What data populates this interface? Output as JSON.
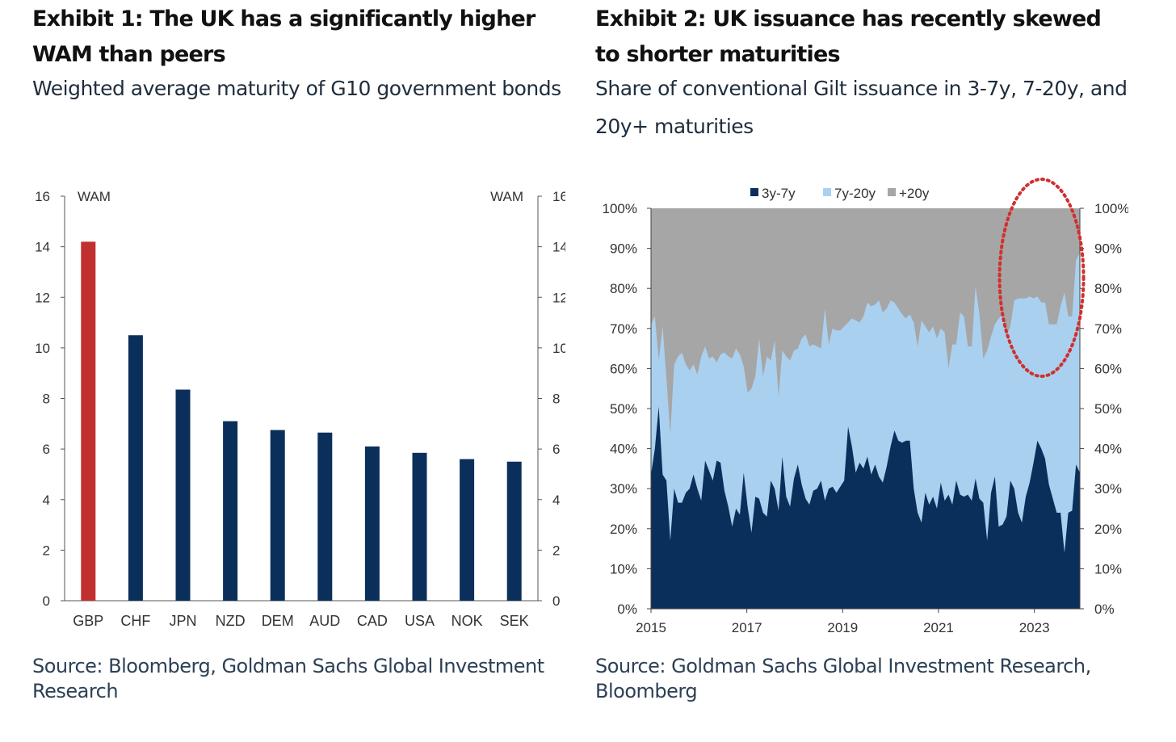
{
  "exhibits": [
    {
      "title": "Exhibit 1: The UK has a significantly higher WAM than peers",
      "subtitle": "Weighted average maturity of G10 government bonds",
      "source": "Source: Bloomberg, Goldman Sachs Global Investment Research"
    },
    {
      "title": "Exhibit 2: UK issuance has recently skewed to shorter maturities",
      "subtitle": "Share of conventional Gilt issuance in 3-7y, 7-20y, and 20y+ maturities",
      "source": "Source: Goldman Sachs Global Investment Research, Bloomberg"
    }
  ],
  "chart_data": [
    {
      "type": "bar",
      "title": "",
      "left_axis_label": "WAM",
      "right_axis_label": "WAM",
      "categories": [
        "GBP",
        "CHF",
        "JPN",
        "NZD",
        "DEM",
        "AUD",
        "CAD",
        "USA",
        "NOK",
        "SEK"
      ],
      "values": [
        14.2,
        10.5,
        8.35,
        7.1,
        6.75,
        6.65,
        6.1,
        5.85,
        5.6,
        5.5
      ],
      "highlight_category": "GBP",
      "ylim": [
        0,
        16
      ],
      "yticks": [
        0,
        2,
        4,
        6,
        8,
        10,
        12,
        14,
        16
      ],
      "dual_y_axis": true,
      "grid": false,
      "colors": {
        "highlight": "#c0302e",
        "bar": "#0b2f5b",
        "axis": "#555555",
        "tick_text": "#333333"
      }
    },
    {
      "type": "area",
      "stacked": true,
      "percent": true,
      "title": "",
      "legend": [
        "3y-7y",
        "7y-20y",
        "+20y"
      ],
      "legend_position": "top",
      "xlim": [
        2015.0,
        2023.95
      ],
      "xticks": [
        2015,
        2017,
        2019,
        2021,
        2023
      ],
      "xtick_labels": [
        "2015",
        "2017",
        "2019",
        "2021",
        "2023"
      ],
      "ylim": [
        0,
        100
      ],
      "yticks": [
        0,
        10,
        20,
        30,
        40,
        50,
        60,
        70,
        80,
        90,
        100
      ],
      "ytick_labels": [
        "0%",
        "10%",
        "20%",
        "30%",
        "40%",
        "50%",
        "60%",
        "70%",
        "80%",
        "90%",
        "100%"
      ],
      "dual_y_axis": true,
      "grid": false,
      "annotation": "dotted red ellipse highlighting 2022-2023",
      "colors": {
        "3y-7y": "#0b2f5b",
        "7y-20y": "#aad0f0",
        "+20y": "#a6a6a6",
        "annotation": "#d0302e"
      },
      "series": [
        {
          "name": "3y-7y",
          "values": [
            33.5,
            40.0,
            50.5,
            33.5,
            32.0,
            17.0,
            30.0,
            26.5,
            26.5,
            29.0,
            30.0,
            33.5,
            30.0,
            27.0,
            37.0,
            34.5,
            32.0,
            37.0,
            36.5,
            29.5,
            25.5,
            20.5,
            25.0,
            23.5,
            34.0,
            25.5,
            19.0,
            28.0,
            27.5,
            24.0,
            23.0,
            32.0,
            30.0,
            24.5,
            38.0,
            28.0,
            25.5,
            32.5,
            36.0,
            31.0,
            27.5,
            26.0,
            29.5,
            30.0,
            32.0,
            27.0,
            30.0,
            30.5,
            29.0,
            30.5,
            32.0,
            45.5,
            40.5,
            34.0,
            36.5,
            35.0,
            38.0,
            33.5,
            36.0,
            33.0,
            31.5,
            35.5,
            40.5,
            44.5,
            42.0,
            41.5,
            42.0,
            42.0,
            30.0,
            24.0,
            21.5,
            29.0,
            26.0,
            28.0,
            25.0,
            31.5,
            27.0,
            28.5,
            26.0,
            32.0,
            28.5,
            28.0,
            28.5,
            27.0,
            32.5,
            27.5,
            26.5,
            17.0,
            29.0,
            33.0,
            20.5,
            21.0,
            23.0,
            32.0,
            30.0,
            24.0,
            21.5,
            28.0,
            31.5,
            36.5,
            42.0,
            40.0,
            37.5,
            31.0,
            27.5,
            24.0,
            24.0,
            14.0,
            24.0,
            24.5,
            36.0,
            34.0
          ]
        },
        {
          "name": "7y-20y",
          "values": [
            37.5,
            33.0,
            11.5,
            37.0,
            25.5,
            26.5,
            31.0,
            36.5,
            37.5,
            32.0,
            29.5,
            27.5,
            28.5,
            36.0,
            28.5,
            28.0,
            31.0,
            24.5,
            27.0,
            34.5,
            37.5,
            42.0,
            40.0,
            40.0,
            26.5,
            28.5,
            36.0,
            30.0,
            40.0,
            34.0,
            40.0,
            30.0,
            37.0,
            28.5,
            26.5,
            35.0,
            36.5,
            32.0,
            29.0,
            36.5,
            41.0,
            39.5,
            36.5,
            35.5,
            33.0,
            48.0,
            36.0,
            39.5,
            40.5,
            39.0,
            38.5,
            26.0,
            32.0,
            38.0,
            35.0,
            38.0,
            38.5,
            42.0,
            40.0,
            44.0,
            42.5,
            39.5,
            36.5,
            32.0,
            33.0,
            32.0,
            30.5,
            31.5,
            41.5,
            41.5,
            50.5,
            41.5,
            43.0,
            42.5,
            42.5,
            38.5,
            42.0,
            31.5,
            40.0,
            34.0,
            45.5,
            45.0,
            37.0,
            38.5,
            48.0,
            46.0,
            36.0,
            47.5,
            39.0,
            38.0,
            52.0,
            52.5,
            45.0,
            38.5,
            47.0,
            53.5,
            56.0,
            49.5,
            46.5,
            41.0,
            36.0,
            36.5,
            39.0,
            40.0,
            43.5,
            47.0,
            51.5,
            65.0,
            49.0,
            48.5,
            51.0,
            55.0
          ]
        }
      ]
    }
  ]
}
